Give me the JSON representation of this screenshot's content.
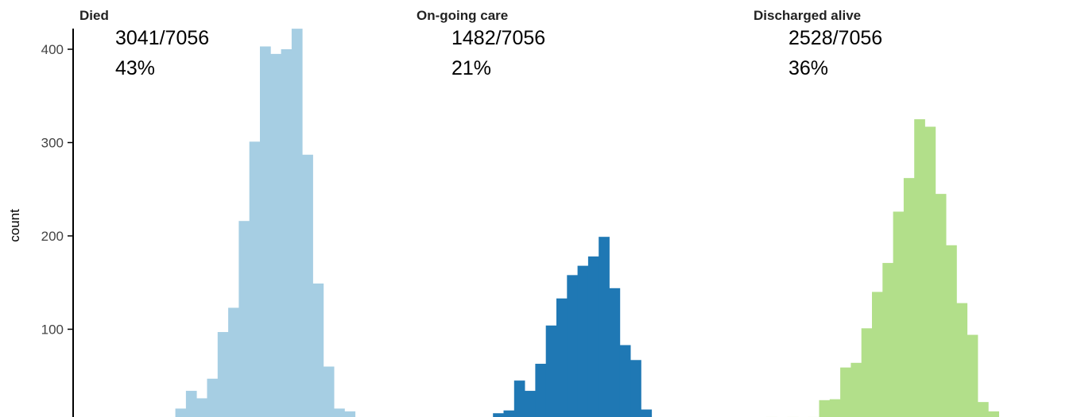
{
  "chart_data": {
    "type": "bar",
    "ylabel": "count",
    "yticks": [
      100,
      200,
      300,
      400
    ],
    "ylim": [
      0,
      425
    ],
    "grid": false,
    "panels": [
      {
        "title": "Died",
        "annotation_fraction": "3041/7056",
        "annotation_percent": "43%",
        "color": "#a6cee3",
        "values": [
          0,
          1,
          15,
          34,
          26,
          47,
          97,
          123,
          216,
          301,
          403,
          395,
          400,
          422,
          287,
          149,
          60,
          15,
          12
        ]
      },
      {
        "title": "On-going care",
        "annotation_fraction": "1482/7056",
        "annotation_percent": "21%",
        "color": "#1f78b4",
        "values": [
          0,
          5,
          0,
          5,
          10,
          13,
          45,
          34,
          63,
          104,
          133,
          158,
          168,
          178,
          199,
          144,
          83,
          67,
          14,
          3
        ]
      },
      {
        "title": "Discharged alive",
        "annotation_fraction": "2528/7056",
        "annotation_percent": "36%",
        "color": "#b2df8a",
        "values": [
          6,
          5,
          6,
          3,
          6,
          24,
          25,
          59,
          64,
          101,
          140,
          171,
          226,
          262,
          325,
          317,
          245,
          190,
          128,
          94,
          22,
          12,
          3
        ]
      }
    ]
  }
}
